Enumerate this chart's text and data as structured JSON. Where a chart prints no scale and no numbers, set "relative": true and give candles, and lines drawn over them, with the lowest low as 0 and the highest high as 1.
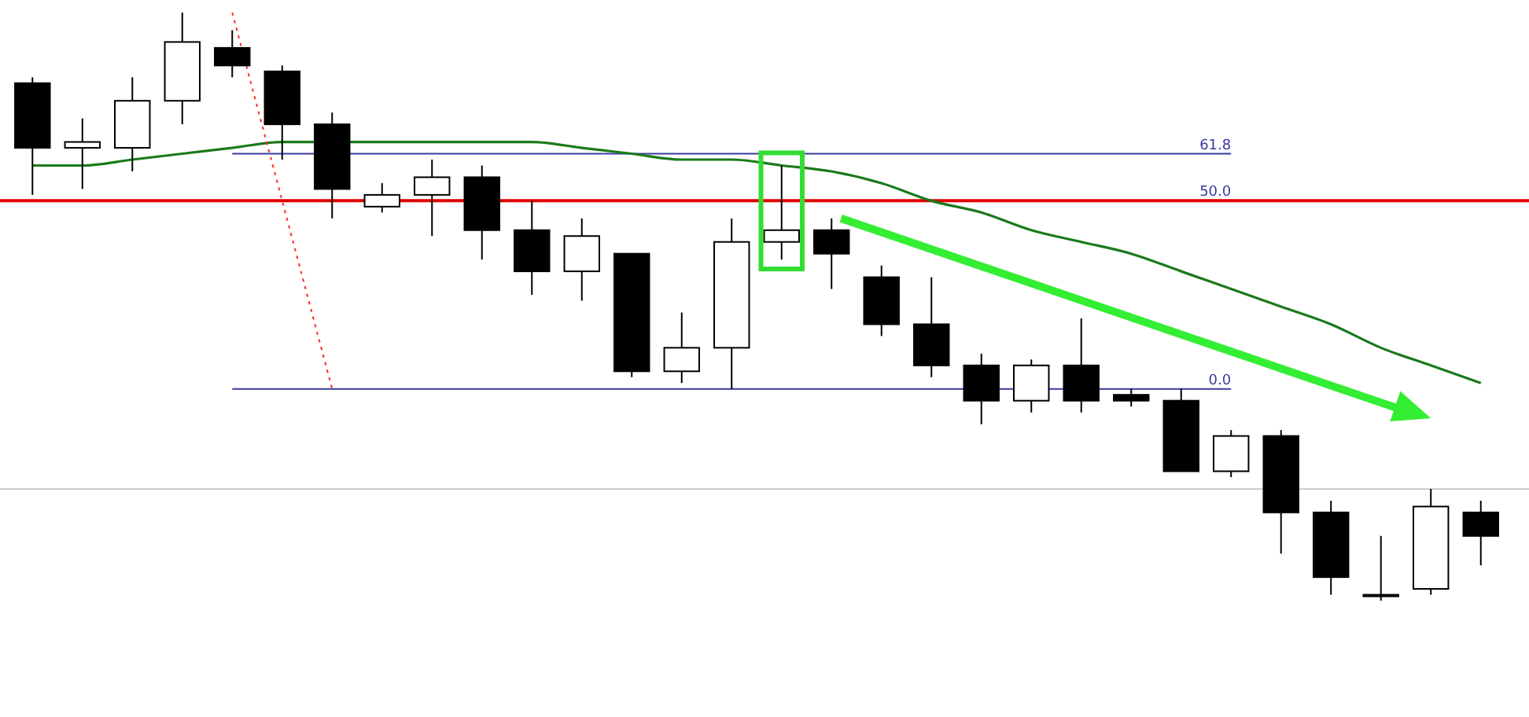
{
  "chart_data": {
    "type": "candlestick",
    "relative": true,
    "categories": [
      null,
      null,
      null,
      null,
      null,
      null,
      null,
      null,
      null,
      null,
      null,
      null,
      null,
      null,
      null,
      null,
      null,
      null,
      null,
      null,
      null,
      null,
      null,
      null,
      null,
      null,
      null,
      null,
      null,
      null
    ],
    "ohlc": [
      [
        0.88,
        0.89,
        0.69,
        0.77
      ],
      [
        0.77,
        0.82,
        0.7,
        0.78
      ],
      [
        0.77,
        0.89,
        0.73,
        0.85
      ],
      [
        0.85,
        1,
        0.81,
        0.95
      ],
      [
        0.94,
        0.97,
        0.89,
        0.91
      ],
      [
        0.9,
        0.91,
        0.75,
        0.81
      ],
      [
        0.81,
        0.83,
        0.65,
        0.7
      ],
      [
        0.67,
        0.71,
        0.66,
        0.69
      ],
      [
        0.69,
        0.75,
        0.62,
        0.72
      ],
      [
        0.72,
        0.74,
        0.58,
        0.63
      ],
      [
        0.63,
        0.68,
        0.52,
        0.56
      ],
      [
        0.56,
        0.65,
        0.51,
        0.62
      ],
      [
        0.59,
        0.59,
        0.38,
        0.39
      ],
      [
        0.39,
        0.49,
        0.37,
        0.43
      ],
      [
        0.43,
        0.65,
        0.36,
        0.61
      ],
      [
        0.61,
        0.74,
        0.58,
        0.63
      ],
      [
        0.63,
        0.65,
        0.53,
        0.59
      ],
      [
        0.55,
        0.57,
        0.45,
        0.47
      ],
      [
        0.47,
        0.55,
        0.38,
        0.4
      ],
      [
        0.4,
        0.42,
        0.3,
        0.34
      ],
      [
        0.34,
        0.41,
        0.32,
        0.4
      ],
      [
        0.4,
        0.48,
        0.32,
        0.34
      ],
      [
        0.35,
        0.36,
        0.33,
        0.34
      ],
      [
        0.34,
        0.36,
        0.22,
        0.22
      ],
      [
        0.22,
        0.29,
        0.21,
        0.28
      ],
      [
        0.28,
        0.29,
        0.08,
        0.15
      ],
      [
        0.15,
        0.17,
        0.01,
        0.04
      ],
      [
        0.01,
        0.11,
        0,
        0.01
      ],
      [
        0.02,
        0.19,
        0.01,
        0.16
      ],
      [
        0.15,
        0.17,
        0.06,
        0.11
      ]
    ],
    "series": [
      {
        "type": "line",
        "color": "#1a7a1a",
        "values": [
          0.74,
          0.74,
          0.75,
          0.76,
          0.77,
          0.78,
          null,
          0.78,
          0.78,
          0.78,
          0.78,
          0.77,
          0.76,
          0.75,
          0.75,
          0.74,
          0.73,
          0.71,
          0.68,
          0.66,
          0.63,
          0.61,
          0.59,
          0.56,
          0.53,
          0.5,
          0.47,
          0.43,
          0.4,
          0.37
        ]
      },
      {
        "type": "line",
        "color": "#ff2a2a",
        "line_style": "dotted",
        "values": [
          null,
          null,
          null,
          null,
          1,
          0.68,
          0.36,
          null,
          null,
          null,
          null,
          null,
          null,
          null,
          null,
          null,
          null,
          null,
          null,
          null,
          null,
          null,
          null,
          null,
          null,
          null,
          null,
          null,
          null,
          null
        ]
      }
    ],
    "ref_lines": [
      {
        "axis": "y",
        "value": 0.19,
        "color": "#cccccc"
      },
      {
        "axis": "y",
        "value": 0.68,
        "color": "#e00000"
      },
      {
        "axis": "y",
        "value": 0.76,
        "color": "#3a3aa0"
      },
      {
        "axis": "y",
        "value": 0.36,
        "color": "#3a3aa0"
      }
    ],
    "annotations": [
      {
        "text": "61.8",
        "y": 0.76
      },
      {
        "text": "50.0",
        "y": 0.68
      },
      {
        "text": "0.0",
        "y": 0.36
      }
    ]
  }
}
